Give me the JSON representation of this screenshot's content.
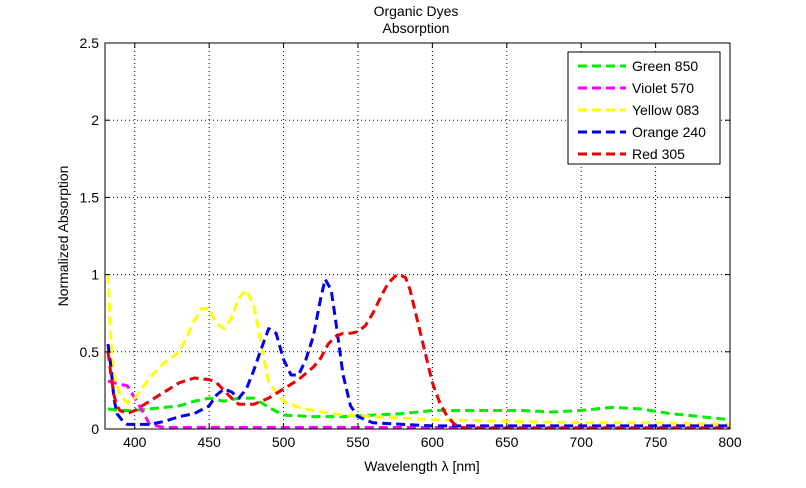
{
  "chart_data": {
    "type": "line",
    "title": "Organic Dyes",
    "subtitle": "Absorption",
    "xlabel": "Wavelength λ [nm]",
    "ylabel": "Normalized Absorption",
    "xlim": [
      380,
      800
    ],
    "ylim": [
      0,
      2.5
    ],
    "xticks": [
      400,
      450,
      500,
      550,
      600,
      650,
      700,
      750,
      800
    ],
    "yticks": [
      0,
      0.5,
      1,
      1.5,
      2,
      2.5
    ],
    "xtick_labels": [
      "400",
      "450",
      "500",
      "550",
      "600",
      "650",
      "700",
      "750",
      "800"
    ],
    "ytick_labels": [
      "0",
      "0.5",
      "1",
      "1.5",
      "2",
      "2.5"
    ],
    "grid": true,
    "legend_position": "top-right",
    "series": [
      {
        "name": "Green 850",
        "color": "#00ee00",
        "x": [
          382,
          390,
          400,
          410,
          420,
          430,
          440,
          450,
          460,
          470,
          480,
          490,
          500,
          520,
          540,
          560,
          580,
          600,
          620,
          640,
          660,
          680,
          700,
          720,
          740,
          760,
          780,
          800
        ],
        "y": [
          0.13,
          0.12,
          0.12,
          0.13,
          0.14,
          0.15,
          0.18,
          0.2,
          0.18,
          0.2,
          0.2,
          0.14,
          0.09,
          0.08,
          0.08,
          0.09,
          0.1,
          0.12,
          0.12,
          0.12,
          0.12,
          0.11,
          0.12,
          0.14,
          0.13,
          0.1,
          0.08,
          0.06
        ]
      },
      {
        "name": "Violet 570",
        "color": "#ff00ff",
        "x": [
          382,
          386,
          390,
          395,
          400,
          405,
          410,
          420,
          440,
          500,
          600,
          700,
          800
        ],
        "y": [
          0.31,
          0.3,
          0.29,
          0.28,
          0.2,
          0.12,
          0.03,
          0.01,
          0.01,
          0.01,
          0.01,
          0.01,
          0.01
        ]
      },
      {
        "name": "Yellow 083",
        "color": "#ffff00",
        "x": [
          382,
          384,
          386,
          390,
          395,
          400,
          410,
          420,
          430,
          440,
          445,
          450,
          455,
          460,
          465,
          470,
          475,
          480,
          485,
          490,
          500,
          510,
          520,
          540,
          560,
          580,
          600,
          650,
          700,
          750,
          800
        ],
        "y": [
          1.0,
          0.55,
          0.35,
          0.22,
          0.17,
          0.2,
          0.33,
          0.43,
          0.5,
          0.7,
          0.78,
          0.78,
          0.68,
          0.65,
          0.72,
          0.85,
          0.9,
          0.8,
          0.55,
          0.3,
          0.18,
          0.14,
          0.12,
          0.09,
          0.08,
          0.07,
          0.06,
          0.05,
          0.04,
          0.04,
          0.03
        ]
      },
      {
        "name": "Orange 240",
        "color": "#0000ee",
        "x": [
          382,
          384,
          386,
          388,
          392,
          395,
          400,
          410,
          420,
          430,
          440,
          450,
          455,
          460,
          465,
          470,
          475,
          480,
          485,
          490,
          495,
          500,
          505,
          510,
          515,
          520,
          525,
          528,
          532,
          535,
          540,
          545,
          550,
          560,
          600,
          700,
          800
        ],
        "y": [
          0.55,
          0.4,
          0.2,
          0.1,
          0.05,
          0.03,
          0.03,
          0.03,
          0.05,
          0.08,
          0.1,
          0.15,
          0.22,
          0.26,
          0.24,
          0.2,
          0.26,
          0.38,
          0.52,
          0.65,
          0.62,
          0.45,
          0.35,
          0.35,
          0.45,
          0.6,
          0.85,
          0.97,
          0.9,
          0.7,
          0.35,
          0.15,
          0.08,
          0.04,
          0.02,
          0.02,
          0.02
        ]
      },
      {
        "name": "Red 305",
        "color": "#ee0000",
        "x": [
          382,
          384,
          386,
          388,
          390,
          395,
          400,
          410,
          420,
          430,
          440,
          450,
          455,
          460,
          465,
          470,
          480,
          490,
          500,
          510,
          520,
          525,
          530,
          535,
          540,
          545,
          550,
          555,
          560,
          565,
          570,
          575,
          578,
          582,
          585,
          590,
          595,
          600,
          605,
          610,
          615,
          620,
          625,
          630,
          650,
          700,
          800
        ],
        "y": [
          0.5,
          0.35,
          0.22,
          0.15,
          0.12,
          0.1,
          0.12,
          0.18,
          0.24,
          0.3,
          0.33,
          0.32,
          0.3,
          0.25,
          0.2,
          0.16,
          0.16,
          0.2,
          0.26,
          0.32,
          0.4,
          0.46,
          0.55,
          0.6,
          0.62,
          0.62,
          0.63,
          0.67,
          0.75,
          0.85,
          0.94,
          0.99,
          1.0,
          0.98,
          0.9,
          0.7,
          0.5,
          0.3,
          0.17,
          0.08,
          0.03,
          0.01,
          0.005,
          0.005,
          0.005,
          0.005,
          0.005
        ]
      }
    ]
  }
}
